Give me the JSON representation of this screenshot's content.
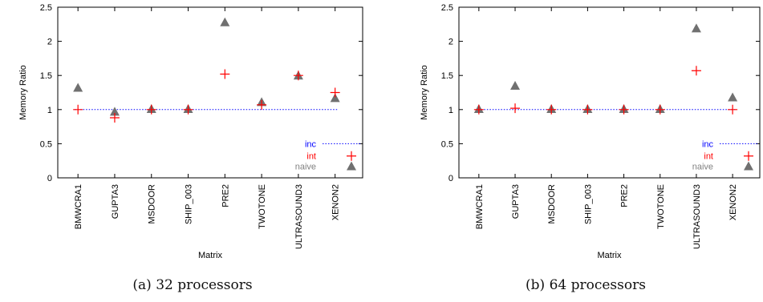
{
  "colors": {
    "inc": "#0000ff",
    "int": "#ff0000",
    "naive": "#808080",
    "axis": "#000000",
    "naive_marker": "#707070"
  },
  "chart_data": [
    {
      "type": "scatter",
      "caption": "(a) 32 processors",
      "categories": [
        "BMWCRA1",
        "GUPTA3",
        "MSDOOR",
        "SHIP_003",
        "PRE2",
        "TWOTONE",
        "ULTRASOUND3",
        "XENON2"
      ],
      "xlabel": "Matrix",
      "ylabel": "Memory Ratio",
      "ylim": [
        0,
        2.5
      ],
      "yticks": [
        0,
        0.5,
        1,
        1.5,
        2,
        2.5
      ],
      "ytick_labels": [
        "0",
        "0.5",
        "1",
        "1.5",
        "2",
        "2.5"
      ],
      "legend": {
        "placement": "lower-right",
        "entries": [
          {
            "key": "inc",
            "label": "inc",
            "marker": "dotted-line"
          },
          {
            "key": "int",
            "label": "int",
            "marker": "plus"
          },
          {
            "key": "naive",
            "label": "naive",
            "marker": "triangle"
          }
        ]
      },
      "series": [
        {
          "name": "inc",
          "values": [
            1,
            1,
            1,
            1,
            1,
            1,
            1,
            1
          ]
        },
        {
          "name": "int",
          "values": [
            1.0,
            0.88,
            1.0,
            1.0,
            1.52,
            1.07,
            1.5,
            1.25
          ]
        },
        {
          "name": "naive",
          "values": [
            1.32,
            0.97,
            1.01,
            1.01,
            2.28,
            1.11,
            1.5,
            1.17
          ]
        }
      ]
    },
    {
      "type": "scatter",
      "caption": "(b) 64 processors",
      "categories": [
        "BMWCRA1",
        "GUPTA3",
        "MSDOOR",
        "SHIP_003",
        "PRE2",
        "TWOTONE",
        "ULTRASOUND3",
        "XENON2"
      ],
      "xlabel": "Matrix",
      "ylabel": "Memory Ratio",
      "ylim": [
        0,
        2.5
      ],
      "yticks": [
        0,
        0.5,
        1,
        1.5,
        2,
        2.5
      ],
      "ytick_labels": [
        "0",
        "0.5",
        "1",
        "1.5",
        "2",
        "2.5"
      ],
      "legend": {
        "placement": "lower-right",
        "entries": [
          {
            "key": "inc",
            "label": "inc",
            "marker": "dotted-line"
          },
          {
            "key": "int",
            "label": "int",
            "marker": "plus"
          },
          {
            "key": "naive",
            "label": "naive",
            "marker": "triangle"
          }
        ]
      },
      "series": [
        {
          "name": "inc",
          "values": [
            1,
            1,
            1,
            1,
            1,
            1,
            1,
            1
          ]
        },
        {
          "name": "int",
          "values": [
            1.0,
            1.02,
            1.0,
            1.0,
            1.0,
            1.0,
            1.57,
            1.0
          ]
        },
        {
          "name": "naive",
          "values": [
            1.01,
            1.35,
            1.01,
            1.01,
            1.01,
            1.01,
            2.19,
            1.18
          ]
        }
      ]
    }
  ]
}
